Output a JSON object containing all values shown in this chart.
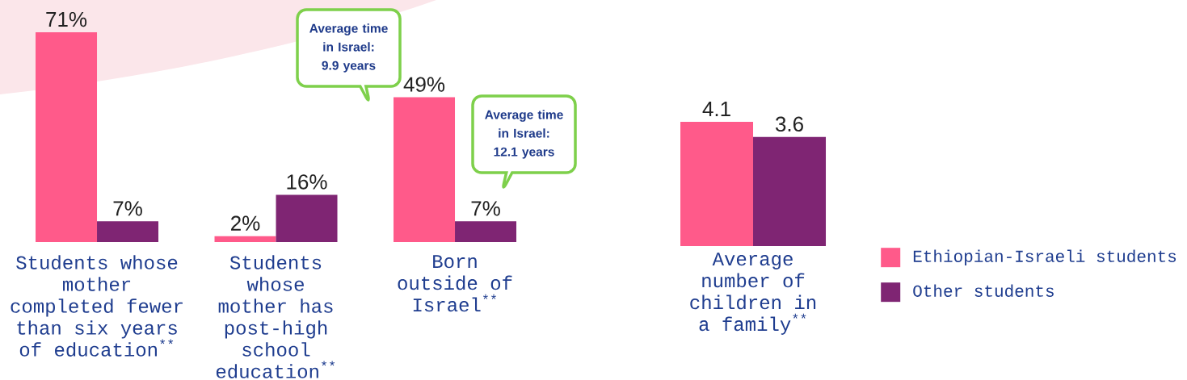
{
  "chart_data": [
    {
      "type": "bar",
      "categories": [
        "Students whose mother completed fewer than six years of education$^{**}$",
        "Students whose mother has post-high school education$^{**}$",
        "Born outside of Israel$^{**}$"
      ],
      "series": [
        {
          "color": "#ff5a8a",
          "values": [
            71,
            2,
            49
          ],
          "value_labels": [
            "71%",
            "2%",
            "49%"
          ]
        },
        {
          "color": "#7f2573",
          "values": [
            7,
            16,
            7
          ],
          "value_labels": [
            "7%",
            "16%",
            "7%"
          ]
        }
      ],
      "tick_labels": "x",
      "annotations": [
        "Average time in Israel: 9.9 years",
        "Average time in Israel: 12.1 years"
      ]
    },
    {
      "type": "bar",
      "categories": [
        "Average number of children in a family$^{**}$"
      ],
      "series": [
        {
          "name": "Ethiopian-Israeli students",
          "color": "#ff5a8a",
          "values": [
            4.1
          ]
        },
        {
          "name": "Other students",
          "color": "#7f2573",
          "values": [
            3.6
          ]
        }
      ],
      "tick_labels": "x",
      "data_labels": true,
      "legend": "right"
    }
  ]
}
